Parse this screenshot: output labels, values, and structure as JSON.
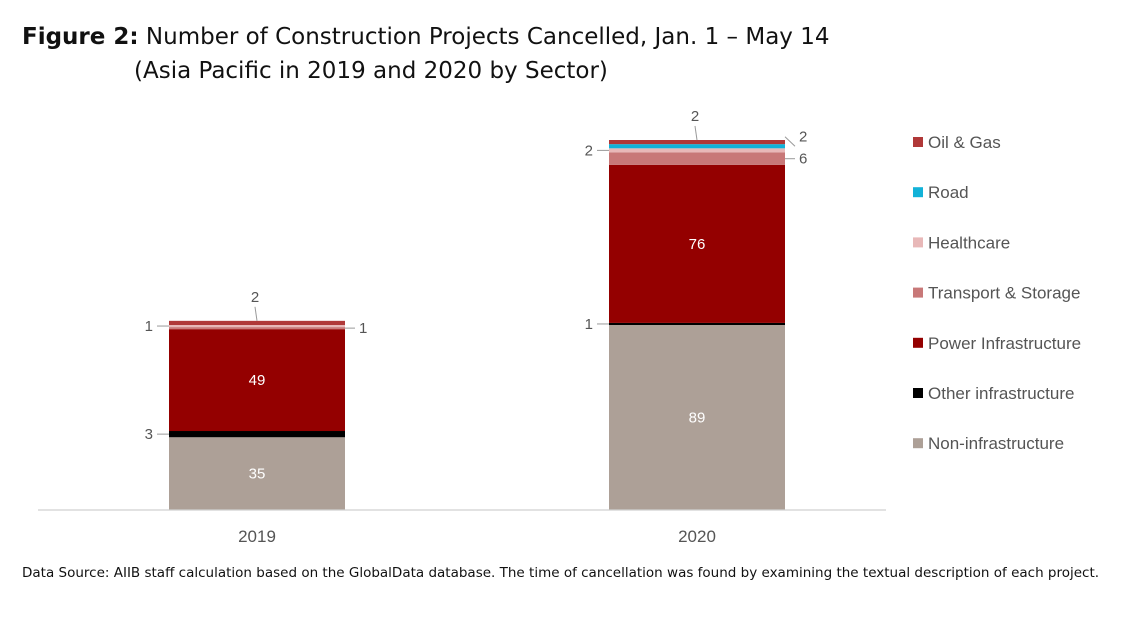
{
  "title": {
    "figure_label": "Figure 2:",
    "line1": "Number of Construction Projects Cancelled, Jan. 1 – May 14",
    "line2": "(Asia Pacific in 2019 and 2020 by Sector)"
  },
  "source_note": "Data Source: AIIB staff calculation based on the GlobalData database. The time of cancellation was found by examining the textual description of each project.",
  "chart_data": {
    "type": "bar",
    "stacked": true,
    "categories": [
      "2019",
      "2020"
    ],
    "series": [
      {
        "name": "Non-infrastructure",
        "color": "#ada097",
        "values": [
          35,
          89
        ]
      },
      {
        "name": "Other infrastructure",
        "color": "#000000",
        "values": [
          3,
          1
        ]
      },
      {
        "name": "Power Infrastructure",
        "color": "#940000",
        "values": [
          49,
          76
        ]
      },
      {
        "name": "Transport & Storage",
        "color": "#c87878",
        "values": [
          1,
          6
        ]
      },
      {
        "name": "Healthcare",
        "color": "#e8b8b8",
        "values": [
          1,
          2
        ]
      },
      {
        "name": "Road",
        "color": "#12b2d8",
        "values": [
          0,
          2
        ]
      },
      {
        "name": "Oil & Gas",
        "color": "#b03838",
        "values": [
          2,
          2
        ]
      }
    ],
    "legend_order": [
      "Oil & Gas",
      "Road",
      "Healthcare",
      "Transport & Storage",
      "Power Infrastructure",
      "Other infrastructure",
      "Non-infrastructure"
    ],
    "legend_position": "right",
    "ylim": [
      0,
      178
    ],
    "grid": false,
    "xlabel": "",
    "ylabel": ""
  }
}
